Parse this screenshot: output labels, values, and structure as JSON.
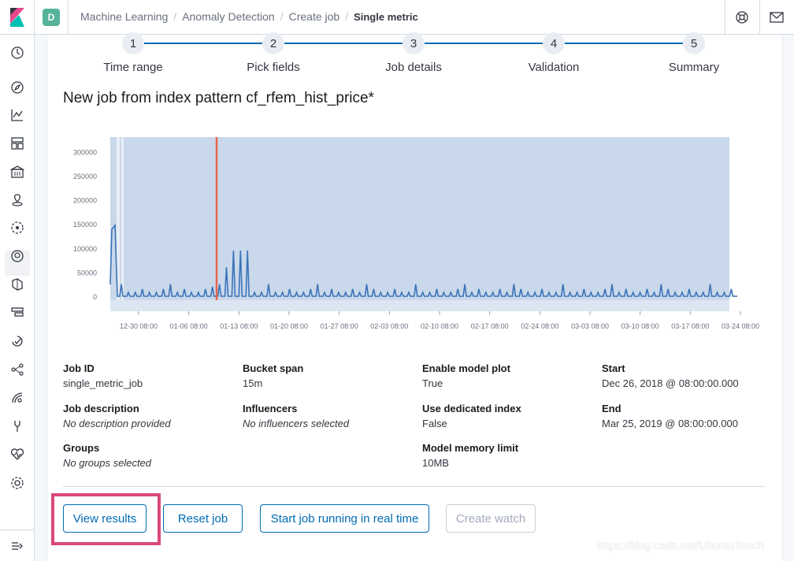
{
  "header": {
    "space_initial": "D",
    "breadcrumbs": [
      "Machine Learning",
      "Anomaly Detection",
      "Create job",
      "Single metric"
    ]
  },
  "steps": [
    {
      "num": "1",
      "label": "Time range"
    },
    {
      "num": "2",
      "label": "Pick fields"
    },
    {
      "num": "3",
      "label": "Job details"
    },
    {
      "num": "4",
      "label": "Validation"
    },
    {
      "num": "5",
      "label": "Summary"
    }
  ],
  "page_title": "New job from index pattern cf_rfem_hist_price*",
  "chart_data": {
    "type": "area",
    "title": "",
    "y_ticks": [
      "300000",
      "250000",
      "200000",
      "150000",
      "100000",
      "50000",
      "0"
    ],
    "ylim": [
      0,
      330000
    ],
    "x_ticks": [
      "12-30 08:00",
      "01-06 08:00",
      "01-13 08:00",
      "01-20 08:00",
      "01-27 08:00",
      "02-03 08:00",
      "02-10 08:00",
      "02-17 08:00",
      "02-24 08:00",
      "03-03 08:00",
      "03-10 08:00",
      "03-17 08:00",
      "03-24 08:00"
    ],
    "series": [
      {
        "name": "model bounds",
        "color": "#c9d8ea"
      },
      {
        "name": "actual",
        "color": "#3a73b8"
      },
      {
        "name": "marker",
        "color": "#e7664c"
      }
    ]
  },
  "details": {
    "job_id": {
      "label": "Job ID",
      "value": "single_metric_job"
    },
    "bucket_span": {
      "label": "Bucket span",
      "value": "15m"
    },
    "model_plot": {
      "label": "Enable model plot",
      "value": "True"
    },
    "start": {
      "label": "Start",
      "value": "Dec 26, 2018 @ 08:00:00.000"
    },
    "job_desc": {
      "label": "Job description",
      "value": "No description provided"
    },
    "influencers": {
      "label": "Influencers",
      "value": "No influencers selected"
    },
    "dedicated": {
      "label": "Use dedicated index",
      "value": "False"
    },
    "end": {
      "label": "End",
      "value": "Mar 25, 2019 @ 08:00:00.000"
    },
    "groups": {
      "label": "Groups",
      "value": "No groups selected"
    },
    "memory": {
      "label": "Model memory limit",
      "value": "10MB"
    }
  },
  "buttons": {
    "view_results": "View results",
    "reset_job": "Reset job",
    "start_realtime": "Start job running in real time",
    "create_watch": "Create watch"
  },
  "watermark": "https://blog.csdn.net/UbuntuTouch"
}
